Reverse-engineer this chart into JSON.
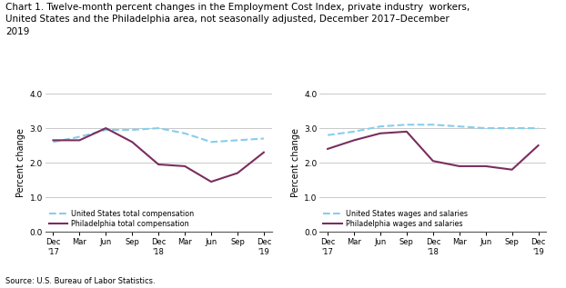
{
  "title_line1": "Chart 1. Twelve-month percent changes in the Employment Cost Index, private industry  workers,",
  "title_line2": "United States and the Philadelphia area, not seasonally adjusted, December 2017–December",
  "title_line3": "2019",
  "title_fontsize": 7.5,
  "ylabel": "Percent change",
  "ylabel_fontsize": 7.0,
  "source": "Source: U.S. Bureau of Labor Statistics.",
  "x_labels": [
    "Dec\n'17",
    "Mar",
    "Jun",
    "Sep",
    "Dec\n'18",
    "Mar",
    "Jun",
    "Sep",
    "Dec\n'19"
  ],
  "ylim": [
    0.0,
    4.0
  ],
  "yticks": [
    0.0,
    1.0,
    2.0,
    3.0,
    4.0
  ],
  "chart1": {
    "us_total": [
      2.6,
      2.75,
      2.95,
      2.95,
      3.0,
      2.85,
      2.6,
      2.65,
      2.7
    ],
    "philly_total": [
      2.65,
      2.65,
      3.0,
      2.6,
      1.95,
      1.9,
      1.45,
      1.7,
      2.3
    ],
    "legend_labels": [
      "United States total compensation",
      "Philadelphia total compensation"
    ]
  },
  "chart2": {
    "us_wages": [
      2.8,
      2.9,
      3.05,
      3.1,
      3.1,
      3.05,
      3.0,
      3.0,
      3.0
    ],
    "philly_wages": [
      2.4,
      2.65,
      2.85,
      2.9,
      2.05,
      1.9,
      1.9,
      1.8,
      2.5
    ],
    "legend_labels": [
      "United States wages and salaries",
      "Philadelphia wages and salaries"
    ]
  },
  "us_color": "#87CEEB",
  "philly_color": "#7B2D5E",
  "us_linestyle": "--",
  "philly_linestyle": "-",
  "line_width": 1.5,
  "bg_color": "#ffffff",
  "grid_color": "#c0c0c0"
}
